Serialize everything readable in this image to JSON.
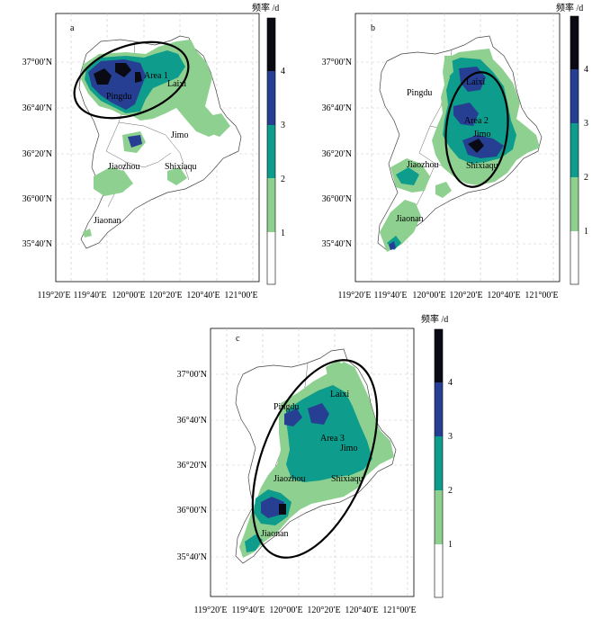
{
  "figure": {
    "colorbar_title": "频率 /d",
    "colorbar_levels": [
      "1",
      "2",
      "3",
      "4"
    ],
    "colors": {
      "level_1": "#ffffff",
      "level_2": "#8ed08f",
      "level_3": "#0e9c8c",
      "level_4": "#263f93",
      "level_5": "#0a0a14",
      "grid": "#c8c8c8",
      "outline": "#444444"
    },
    "lon_ticks": [
      "119°20′E",
      "119°40′E",
      "120°00′E",
      "120°20′E",
      "120°40′E",
      "121°00′E"
    ],
    "lat_ticks": [
      "37°00′N",
      "36°40′N",
      "36°20′N",
      "36°00′N",
      "35°40′N"
    ]
  },
  "panels": [
    {
      "letter": "a",
      "area_label": "Area 1",
      "places": [
        "Pingdu",
        "Laixi",
        "Jimo",
        "Jiaozhou",
        "Shixiaqu",
        "Jiaonan"
      ]
    },
    {
      "letter": "b",
      "area_label": "Area 2",
      "places": [
        "Pingdu",
        "Laixi",
        "Jimo",
        "Jiaozhou",
        "Shixiaqu",
        "Jiaonan"
      ]
    },
    {
      "letter": "c",
      "area_label": "Area 3",
      "places": [
        "Pingdu",
        "Laixi",
        "Jimo",
        "Jiaozhou",
        "Shixiaqu",
        "Jiaonan"
      ]
    }
  ]
}
